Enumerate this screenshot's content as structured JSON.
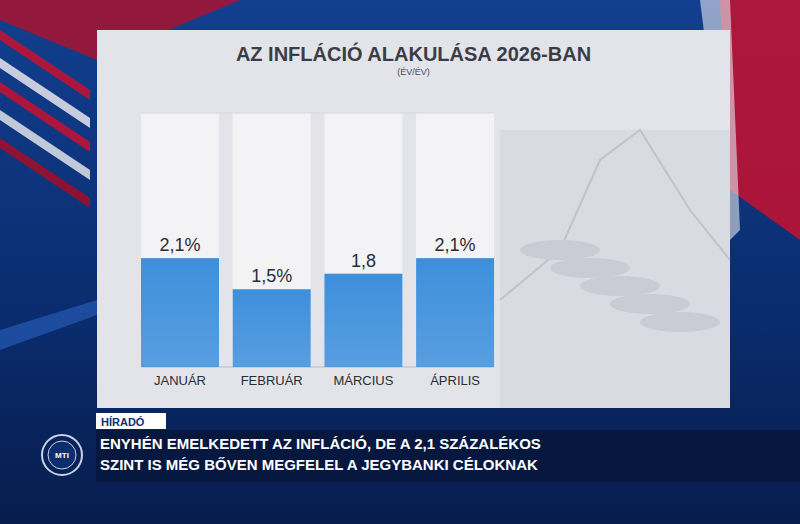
{
  "chart_data": {
    "type": "bar",
    "title": "AZ INFLÁCIÓ ALAKULÁSA 2026-BAN",
    "subtitle": "(ÉV/ÉV)",
    "categories": [
      "JANUÁR",
      "FEBRUÁR",
      "MÁRCIUS",
      "ÁPRILIS"
    ],
    "values": [
      2.1,
      1.5,
      1.8,
      2.1
    ],
    "value_labels": [
      "2,1%",
      "1,5%",
      "1,8",
      "2,1%"
    ],
    "color": "#3d8fdc",
    "ylim": [
      0,
      4.9
    ],
    "grid": false,
    "data_labels": true,
    "tick_labels": "x"
  },
  "caption": {
    "program": "HÍRADÓ",
    "logo": "MTI",
    "headline": [
      "ENYHÉN EMELKEDETT AZ INFLÁCIÓ, DE A 2,1 SZÁZALÉKOS",
      "SZINT IS MÉG BŐVEN MEGFELEL A JEGYBANKI CÉLOKNAK"
    ]
  }
}
